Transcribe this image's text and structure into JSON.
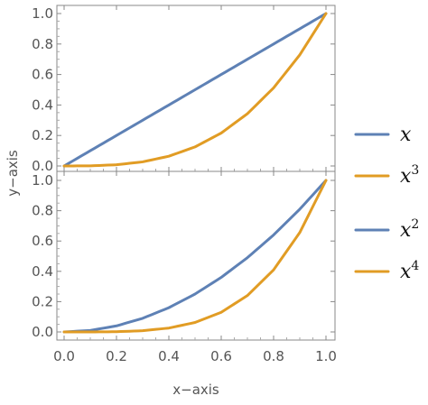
{
  "chart_data": [
    {
      "type": "line",
      "panel": "top",
      "xlim": [
        0,
        1
      ],
      "ylim": [
        0,
        1
      ],
      "x_ticks": [
        "0.0",
        "0.2",
        "0.4",
        "0.6",
        "0.8",
        "1.0"
      ],
      "y_ticks": [
        "0.0",
        "0.2",
        "0.4",
        "0.6",
        "0.8",
        "1.0"
      ],
      "series": [
        {
          "name": "x",
          "color": "#5e81b5",
          "x": [
            0,
            0.1,
            0.2,
            0.3,
            0.4,
            0.5,
            0.6,
            0.7,
            0.8,
            0.9,
            1.0
          ],
          "y": [
            0,
            0.1,
            0.2,
            0.3,
            0.4,
            0.5,
            0.6,
            0.7,
            0.8,
            0.9,
            1.0
          ]
        },
        {
          "name": "x3",
          "color": "#e19c24",
          "x": [
            0,
            0.1,
            0.2,
            0.3,
            0.4,
            0.5,
            0.6,
            0.7,
            0.8,
            0.9,
            1.0
          ],
          "y": [
            0,
            0.001,
            0.008,
            0.027,
            0.064,
            0.125,
            0.216,
            0.343,
            0.512,
            0.729,
            1.0
          ]
        }
      ]
    },
    {
      "type": "line",
      "panel": "bottom",
      "xlim": [
        0,
        1
      ],
      "ylim": [
        0,
        1
      ],
      "x_ticks": [
        "0.0",
        "0.2",
        "0.4",
        "0.6",
        "0.8",
        "1.0"
      ],
      "y_ticks": [
        "0.0",
        "0.2",
        "0.4",
        "0.6",
        "0.8",
        "1.0"
      ],
      "xlabel": "x−axis",
      "series": [
        {
          "name": "x2",
          "color": "#5e81b5",
          "x": [
            0,
            0.1,
            0.2,
            0.3,
            0.4,
            0.5,
            0.6,
            0.7,
            0.8,
            0.9,
            1.0
          ],
          "y": [
            0,
            0.01,
            0.04,
            0.09,
            0.16,
            0.25,
            0.36,
            0.49,
            0.64,
            0.81,
            1.0
          ]
        },
        {
          "name": "x4",
          "color": "#e19c24",
          "x": [
            0,
            0.1,
            0.2,
            0.3,
            0.4,
            0.5,
            0.6,
            0.7,
            0.8,
            0.9,
            1.0
          ],
          "y": [
            0,
            0.0001,
            0.0016,
            0.0081,
            0.0256,
            0.0625,
            0.1296,
            0.2401,
            0.4096,
            0.6561,
            1.0
          ]
        }
      ]
    }
  ],
  "ylabel": "y−axis",
  "legend": [
    {
      "base": "x",
      "sup": "",
      "color": "#5e81b5"
    },
    {
      "base": "x",
      "sup": "3",
      "color": "#e19c24"
    },
    {
      "base": "x",
      "sup": "2",
      "color": "#5e81b5"
    },
    {
      "base": "x",
      "sup": "4",
      "color": "#e19c24"
    }
  ]
}
